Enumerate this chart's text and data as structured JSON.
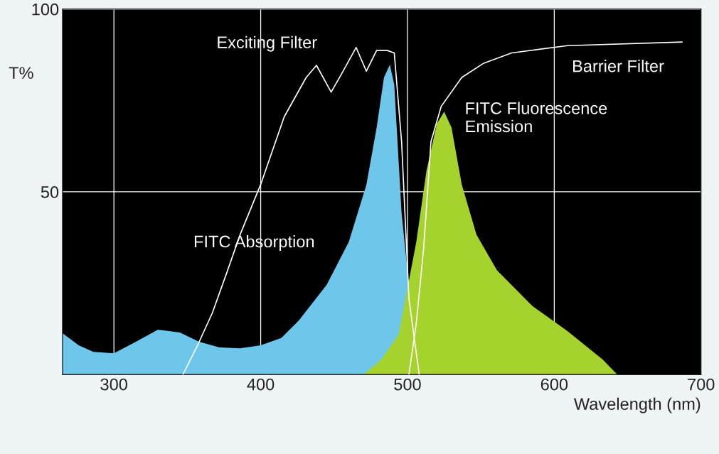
{
  "chart_data": {
    "type": "area",
    "xlabel": "Wavelength (nm)",
    "ylabel": "T%",
    "xlim": [
      265,
      700
    ],
    "ylim": [
      0,
      100
    ],
    "xticks": [
      300,
      400,
      500,
      600,
      700
    ],
    "yticks": [
      50,
      100
    ],
    "grid": true,
    "series": [
      {
        "color": "#6ec6ea",
        "x": [
          265,
          276,
          286,
          300,
          315,
          330,
          345,
          358,
          372,
          386,
          400,
          414,
          426,
          445,
          460,
          472,
          479,
          484,
          488,
          491,
          496,
          501,
          515
        ],
        "values": [
          11.3,
          8,
          6.2,
          5.8,
          9,
          12.3,
          11.5,
          9,
          7.4,
          7.2,
          8,
          10,
          14.8,
          24.6,
          36.3,
          51.9,
          67.6,
          81.3,
          84.8,
          79.3,
          44.1,
          24.6,
          0
        ]
      },
      {
        "color": "#a6d22e",
        "x": [
          470,
          482,
          494,
          506,
          513,
          520,
          525,
          530,
          537,
          547,
          561,
          585,
          609,
          633,
          643
        ],
        "values": [
          0,
          4,
          10.9,
          36.3,
          55.9,
          68.6,
          71.9,
          67.6,
          52,
          38.3,
          28.5,
          18.8,
          11.9,
          4.1,
          0
        ]
      },
      {
        "type": "line",
        "color": "#ffffff",
        "x": [
          347,
          357,
          367,
          377,
          386,
          400,
          416,
          431,
          438,
          448,
          455,
          465,
          472,
          479,
          486,
          491,
          496,
          501,
          508
        ],
        "values": [
          0,
          8,
          16.8,
          28,
          38.3,
          52,
          70.5,
          81.3,
          84.6,
          77.3,
          82.2,
          89.5,
          83,
          88.7,
          88.7,
          88,
          63.7,
          20.7,
          0
        ]
      },
      {
        "type": "line",
        "color": "#ffffff",
        "x": [
          501,
          506,
          511,
          516,
          523,
          537,
          552,
          571,
          609,
          687
        ],
        "values": [
          0,
          14,
          34.4,
          63.7,
          73.4,
          81.3,
          85.2,
          88,
          90,
          91
        ]
      }
    ],
    "annotations": [
      "Exciting Filter",
      "Barrier Filter",
      "FITC Fluorescence\nEmission",
      "FITC Absorption"
    ]
  }
}
